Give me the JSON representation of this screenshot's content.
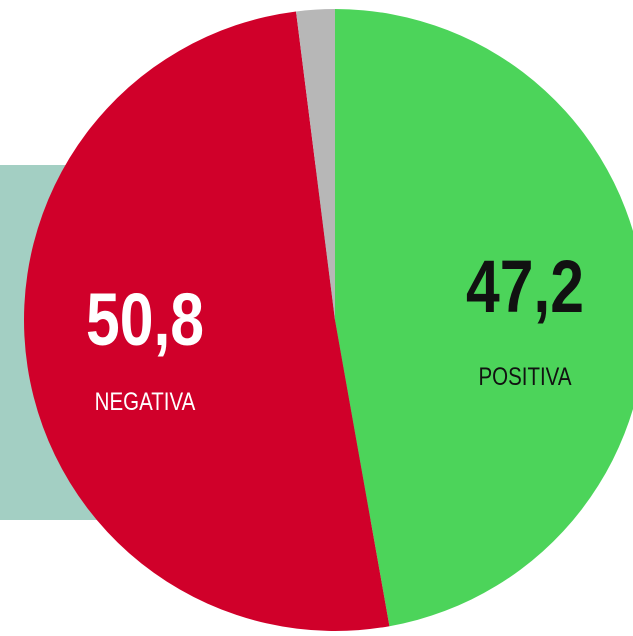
{
  "chart_data": {
    "type": "pie",
    "categories": [
      "POSITIVA",
      "NEGATIVA",
      null
    ],
    "values": [
      47.2,
      50.8,
      2.0
    ],
    "value_labels": [
      "47,2",
      "50,8",
      null
    ],
    "colors": [
      "#4cd45a",
      "#d0002a",
      "#b7b7b7"
    ],
    "start_angle": 0,
    "direction": "clockwise"
  }
}
